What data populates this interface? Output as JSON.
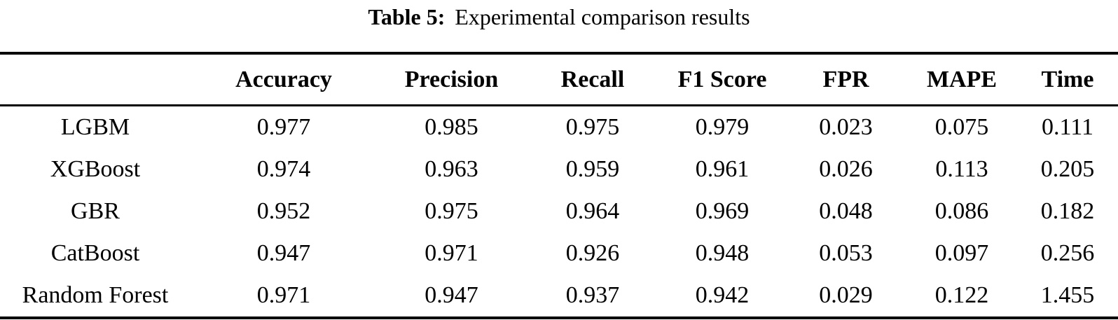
{
  "caption": {
    "label": "Table 5:",
    "text": "Experimental comparison results"
  },
  "table": {
    "columns": [
      "Accuracy",
      "Precision",
      "Recall",
      "F1 Score",
      "FPR",
      "MAPE",
      "Time"
    ],
    "rows": [
      {
        "model": "LGBM",
        "values": [
          "0.977",
          "0.985",
          "0.975",
          "0.979",
          "0.023",
          "0.075",
          "0.111"
        ]
      },
      {
        "model": "XGBoost",
        "values": [
          "0.974",
          "0.963",
          "0.959",
          "0.961",
          "0.026",
          "0.113",
          "0.205"
        ]
      },
      {
        "model": "GBR",
        "values": [
          "0.952",
          "0.975",
          "0.964",
          "0.969",
          "0.048",
          "0.086",
          "0.182"
        ]
      },
      {
        "model": "CatBoost",
        "values": [
          "0.947",
          "0.971",
          "0.926",
          "0.948",
          "0.053",
          "0.097",
          "0.256"
        ]
      },
      {
        "model": "Random Forest",
        "values": [
          "0.971",
          "0.947",
          "0.937",
          "0.942",
          "0.029",
          "0.122",
          "1.455"
        ]
      }
    ]
  },
  "colors": {
    "text": "#000000",
    "background": "#ffffff",
    "rule": "#000000"
  }
}
